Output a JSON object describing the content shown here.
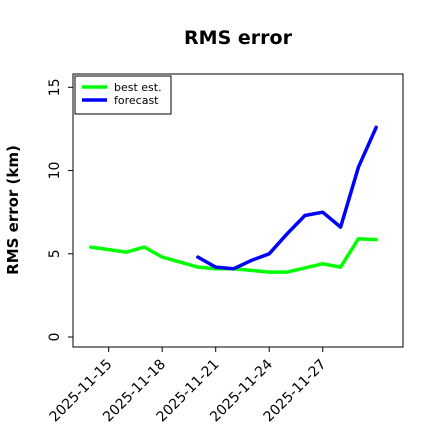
{
  "chart_data": {
    "type": "line",
    "title": "RMS error",
    "xlabel": "",
    "ylabel": "RMS error (km)",
    "ylim": [
      0,
      15
    ],
    "yticks": [
      "0",
      "5",
      "10",
      "15"
    ],
    "xticks": [
      "2025-11-15",
      "2025-11-18",
      "2025-11-21",
      "2025-11-24",
      "2025-11-27"
    ],
    "grid": false,
    "legend_position": "top-left",
    "series": [
      {
        "name": "best est.",
        "color": "#00ff00",
        "points": [
          [
            "2025-11-14",
            5.4
          ],
          [
            "2025-11-16",
            5.1
          ],
          [
            "2025-11-17",
            5.4
          ],
          [
            "2025-11-18",
            4.8
          ],
          [
            "2025-11-19",
            4.5
          ],
          [
            "2025-11-20",
            4.2
          ],
          [
            "2025-11-21",
            4.1
          ],
          [
            "2025-11-22",
            4.1
          ],
          [
            "2025-11-23",
            4.0
          ],
          [
            "2025-11-24",
            3.9
          ],
          [
            "2025-11-25",
            3.9
          ],
          [
            "2025-11-27",
            4.4
          ],
          [
            "2025-11-28",
            4.2
          ],
          [
            "2025-11-29",
            5.9
          ],
          [
            "2025-11-30",
            5.85
          ]
        ]
      },
      {
        "name": "forecast",
        "color": "#0000ff",
        "points": [
          [
            "2025-11-20",
            4.8
          ],
          [
            "2025-11-21",
            4.2
          ],
          [
            "2025-11-22",
            4.1
          ],
          [
            "2025-11-23",
            4.6
          ],
          [
            "2025-11-24",
            5.0
          ],
          [
            "2025-11-25",
            6.2
          ],
          [
            "2025-11-26",
            7.3
          ],
          [
            "2025-11-27",
            7.5
          ],
          [
            "2025-11-28",
            6.6
          ],
          [
            "2025-11-29",
            10.2
          ],
          [
            "2025-11-30",
            12.6
          ]
        ]
      }
    ]
  }
}
